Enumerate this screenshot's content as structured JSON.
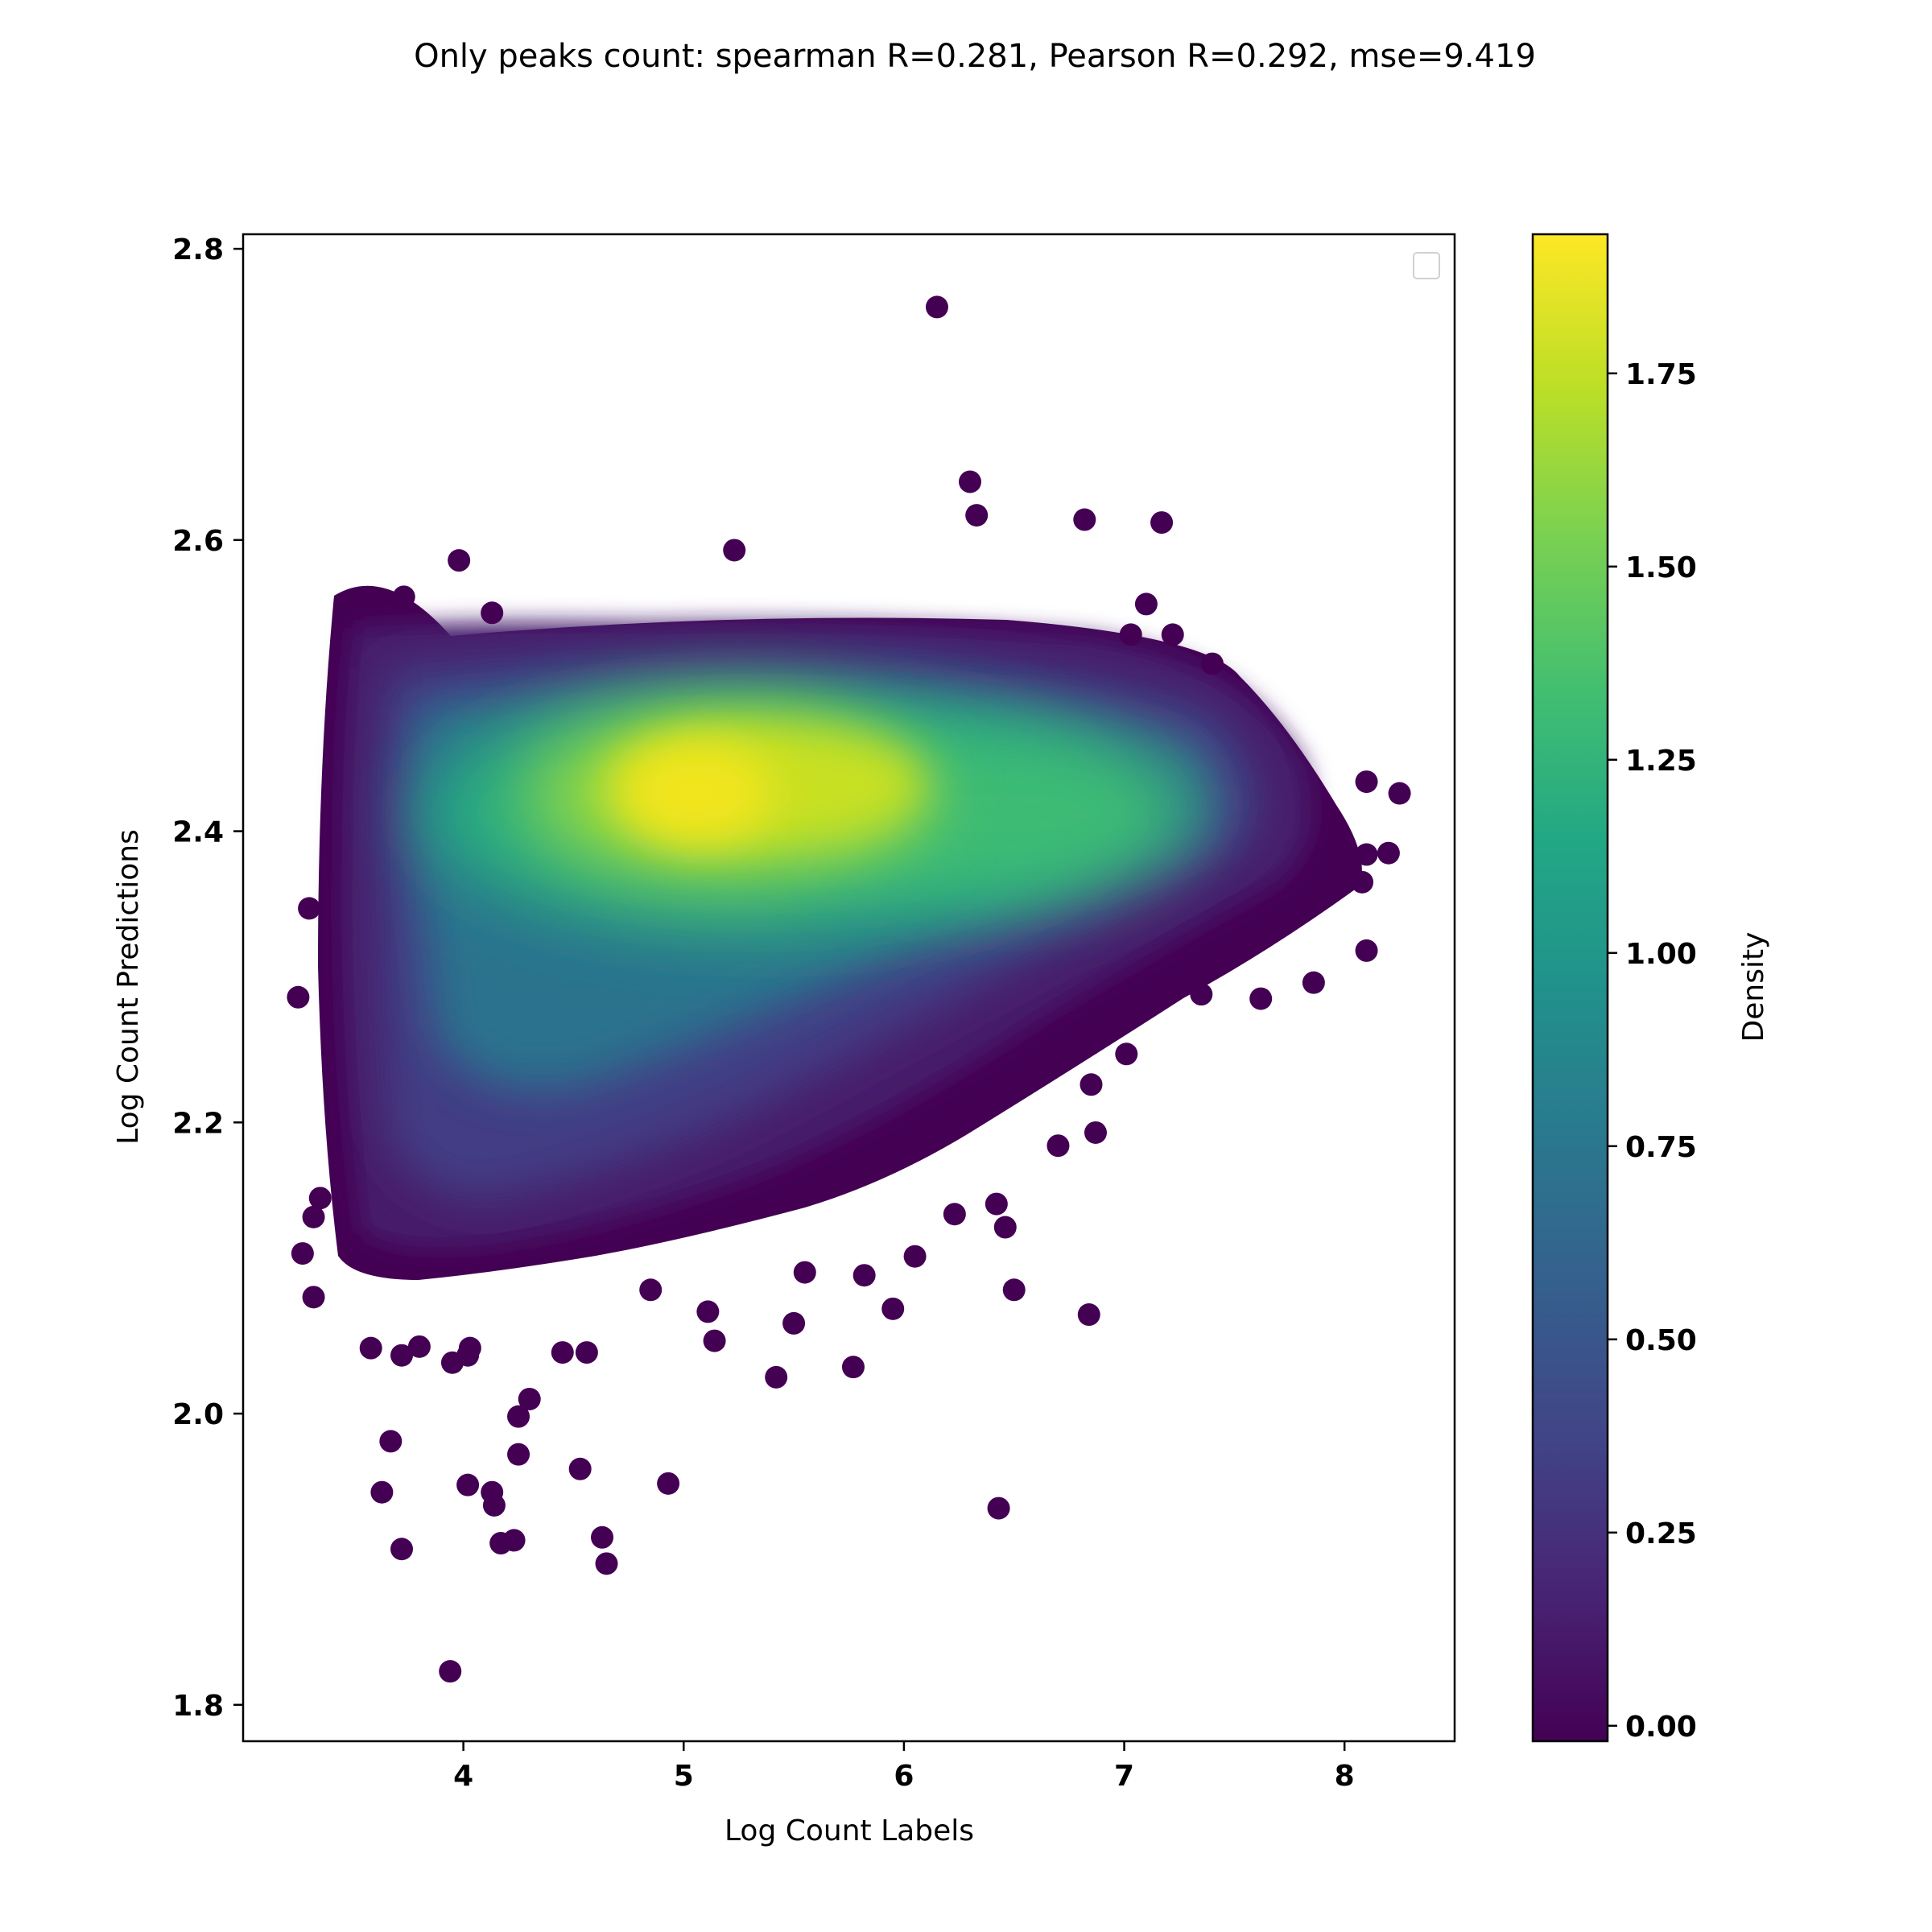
{
  "chart_data": {
    "type": "scatter",
    "title": "Only peaks count: spearman R=0.281, Pearson R=0.292, mse=9.419",
    "xlabel": "Log Count Labels",
    "ylabel": "Log Count Predictions",
    "xlim": [
      3.0,
      8.5
    ],
    "ylim": [
      1.775,
      2.81
    ],
    "xticks": [
      4,
      5,
      6,
      7,
      8
    ],
    "yticks": [
      1.8,
      2.0,
      2.2,
      2.4,
      2.6,
      2.8
    ],
    "grid": false,
    "legend": "upper-right (empty)",
    "colorbar": {
      "label": "Density",
      "range": [
        -0.02,
        1.93
      ],
      "ticks": [
        0.0,
        0.25,
        0.5,
        0.75,
        1.0,
        1.25,
        1.5,
        1.75
      ],
      "tick_labels": [
        "0.00",
        "0.25",
        "0.50",
        "0.75",
        "1.00",
        "1.25",
        "1.50",
        "1.75"
      ],
      "colormap": "viridis"
    },
    "density_peaks": [
      {
        "x": 5.1,
        "y": 2.42,
        "density": 1.9
      },
      {
        "x": 5.7,
        "y": 2.42,
        "density": 1.75
      },
      {
        "x": 4.5,
        "y": 2.38,
        "density": 1.6
      },
      {
        "x": 6.6,
        "y": 2.4,
        "density": 1.45
      }
    ],
    "outliers": [
      [
        6.15,
        2.76
      ],
      [
        6.3,
        2.64
      ],
      [
        6.33,
        2.617
      ],
      [
        6.82,
        2.614
      ],
      [
        7.17,
        2.612
      ],
      [
        5.23,
        2.593
      ],
      [
        3.98,
        2.586
      ],
      [
        3.73,
        2.561
      ],
      [
        7.1,
        2.556
      ],
      [
        4.13,
        2.55
      ],
      [
        3.25,
        2.286
      ],
      [
        3.3,
        2.347
      ],
      [
        3.27,
        2.11
      ],
      [
        3.32,
        2.08
      ],
      [
        3.32,
        2.135
      ],
      [
        3.35,
        2.148
      ],
      [
        3.58,
        2.045
      ],
      [
        3.72,
        2.04
      ],
      [
        3.8,
        2.046
      ],
      [
        3.95,
        2.035
      ],
      [
        4.02,
        2.04
      ],
      [
        4.03,
        2.045
      ],
      [
        4.25,
        1.998
      ],
      [
        4.3,
        2.01
      ],
      [
        4.25,
        1.972
      ],
      [
        3.67,
        1.981
      ],
      [
        3.63,
        1.946
      ],
      [
        4.02,
        1.951
      ],
      [
        4.13,
        1.946
      ],
      [
        4.14,
        1.937
      ],
      [
        4.17,
        1.911
      ],
      [
        4.23,
        1.913
      ],
      [
        3.72,
        1.907
      ],
      [
        4.53,
        1.962
      ],
      [
        4.63,
        1.915
      ],
      [
        4.65,
        1.897
      ],
      [
        4.93,
        1.952
      ],
      [
        3.94,
        1.823
      ],
      [
        5.42,
        2.025
      ],
      [
        5.77,
        2.032
      ],
      [
        5.5,
        2.062
      ],
      [
        5.95,
        2.072
      ],
      [
        6.43,
        1.935
      ],
      [
        6.05,
        2.108
      ],
      [
        6.5,
        2.085
      ],
      [
        6.46,
        2.128
      ],
      [
        6.23,
        2.137
      ],
      [
        6.42,
        2.144
      ],
      [
        6.84,
        2.068
      ],
      [
        6.7,
        2.184
      ],
      [
        6.87,
        2.193
      ],
      [
        6.85,
        2.226
      ],
      [
        7.01,
        2.247
      ],
      [
        5.14,
        2.05
      ],
      [
        5.11,
        2.07
      ],
      [
        4.56,
        2.042
      ],
      [
        4.45,
        2.042
      ],
      [
        4.85,
        2.085
      ],
      [
        5.82,
        2.095
      ],
      [
        5.55,
        2.097
      ],
      [
        8.1,
        2.434
      ],
      [
        8.25,
        2.426
      ],
      [
        8.2,
        2.385
      ],
      [
        8.1,
        2.384
      ],
      [
        8.08,
        2.365
      ],
      [
        8.1,
        2.318
      ],
      [
        7.86,
        2.296
      ],
      [
        7.62,
        2.285
      ],
      [
        7.35,
        2.288
      ],
      [
        7.4,
        2.515
      ],
      [
        7.22,
        2.535
      ],
      [
        7.03,
        2.535
      ]
    ]
  }
}
